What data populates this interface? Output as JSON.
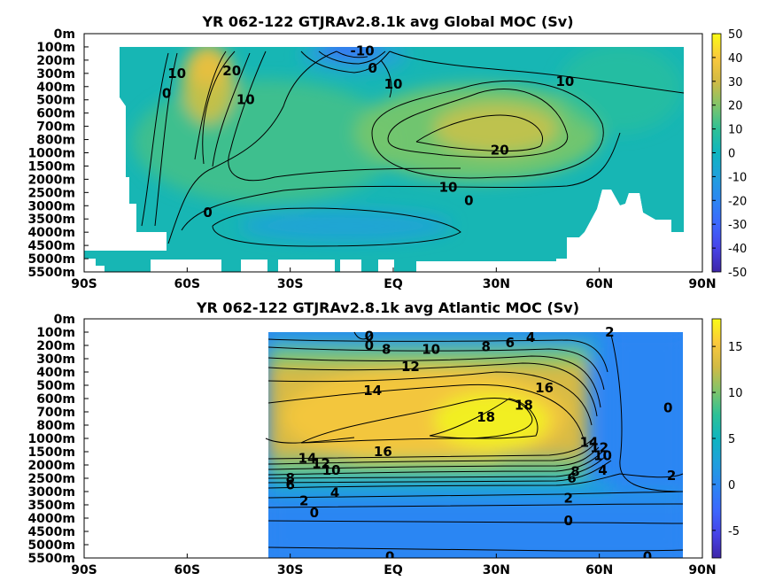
{
  "chart_data": [
    {
      "type": "heatmap",
      "title": "YR 062-122 GTJRAv2.8.1k avg  Global MOC (Sv)",
      "x_ticks": [
        "90S",
        "60S",
        "30S",
        "EQ",
        "30N",
        "60N",
        "90N"
      ],
      "x_range": [
        -90,
        90
      ],
      "y_ticks": [
        "0m",
        "100m",
        "200m",
        "300m",
        "400m",
        "500m",
        "600m",
        "700m",
        "800m",
        "1000m",
        "1500m",
        "2000m",
        "2500m",
        "3000m",
        "3500m",
        "4000m",
        "4500m",
        "5000m",
        "5500m"
      ],
      "colorbar": {
        "min": -50,
        "max": 50,
        "ticks": [
          "50",
          "40",
          "30",
          "20",
          "10",
          "0",
          "-10",
          "-20",
          "-30",
          "-40",
          "-50"
        ]
      },
      "contour_labels": [
        {
          "text": "0",
          "lat": -66,
          "depth_index": 4.5
        },
        {
          "text": "10",
          "lat": -63,
          "depth_index": 3.0
        },
        {
          "text": "20",
          "lat": -47,
          "depth_index": 2.8
        },
        {
          "text": "10",
          "lat": -43,
          "depth_index": 5.0
        },
        {
          "text": "0",
          "lat": -54,
          "depth_index": 13.5
        },
        {
          "text": "-10",
          "lat": -9,
          "depth_index": 1.3
        },
        {
          "text": "0",
          "lat": -6,
          "depth_index": 2.6
        },
        {
          "text": "10",
          "lat": 0,
          "depth_index": 3.8
        },
        {
          "text": "10",
          "lat": 50,
          "depth_index": 3.6
        },
        {
          "text": "20",
          "lat": 31,
          "depth_index": 8.8
        },
        {
          "text": "10",
          "lat": 16,
          "depth_index": 11.6
        },
        {
          "text": "0",
          "lat": 22,
          "depth_index": 12.6
        }
      ]
    },
    {
      "type": "heatmap",
      "title": "YR 062-122 GTJRAv2.8.1k avg  Atlantic MOC (Sv)",
      "x_ticks": [
        "90S",
        "60S",
        "30S",
        "EQ",
        "30N",
        "60N",
        "90N"
      ],
      "x_range": [
        -90,
        90
      ],
      "y_ticks": [
        "0m",
        "100m",
        "200m",
        "300m",
        "400m",
        "500m",
        "600m",
        "700m",
        "800m",
        "1000m",
        "1500m",
        "2000m",
        "2500m",
        "3000m",
        "3500m",
        "4000m",
        "4500m",
        "5000m",
        "5500m"
      ],
      "colorbar": {
        "min": -8,
        "max": 18,
        "ticks": [
          "15",
          "10",
          "5",
          "0",
          "-5"
        ]
      },
      "contour_labels": [
        {
          "text": "0",
          "lat": -7,
          "depth_index": 1.3
        },
        {
          "text": "0",
          "lat": -7,
          "depth_index": 2.0
        },
        {
          "text": "8",
          "lat": -2,
          "depth_index": 2.3
        },
        {
          "text": "10",
          "lat": 11,
          "depth_index": 2.3
        },
        {
          "text": "8",
          "lat": 27,
          "depth_index": 2.1
        },
        {
          "text": "6",
          "lat": 34,
          "depth_index": 1.8
        },
        {
          "text": "4",
          "lat": 40,
          "depth_index": 1.4
        },
        {
          "text": "2",
          "lat": 63,
          "depth_index": 1.0
        },
        {
          "text": "12",
          "lat": 5,
          "depth_index": 3.6
        },
        {
          "text": "14",
          "lat": -6,
          "depth_index": 5.4
        },
        {
          "text": "16",
          "lat": 44,
          "depth_index": 5.2
        },
        {
          "text": "18",
          "lat": 27,
          "depth_index": 7.4
        },
        {
          "text": "18",
          "lat": 38,
          "depth_index": 6.5
        },
        {
          "text": "16",
          "lat": -3,
          "depth_index": 10.0
        },
        {
          "text": "14",
          "lat": -25,
          "depth_index": 10.5
        },
        {
          "text": "12",
          "lat": -21,
          "depth_index": 10.9
        },
        {
          "text": "10",
          "lat": -18,
          "depth_index": 11.4
        },
        {
          "text": "14",
          "lat": 57,
          "depth_index": 9.3
        },
        {
          "text": "12",
          "lat": 60,
          "depth_index": 9.7
        },
        {
          "text": "10",
          "lat": 61,
          "depth_index": 10.3
        },
        {
          "text": "8",
          "lat": 53,
          "depth_index": 11.5
        },
        {
          "text": "6",
          "lat": 52,
          "depth_index": 12.0
        },
        {
          "text": "4",
          "lat": 61,
          "depth_index": 11.4
        },
        {
          "text": "2",
          "lat": 81,
          "depth_index": 11.8
        },
        {
          "text": "0",
          "lat": 80,
          "depth_index": 6.7
        },
        {
          "text": "8",
          "lat": -30,
          "depth_index": 12.0
        },
        {
          "text": "6",
          "lat": -30,
          "depth_index": 12.5
        },
        {
          "text": "4",
          "lat": -17,
          "depth_index": 13.1
        },
        {
          "text": "2",
          "lat": -26,
          "depth_index": 13.7
        },
        {
          "text": "2",
          "lat": 51,
          "depth_index": 13.5
        },
        {
          "text": "0",
          "lat": -23,
          "depth_index": 14.6
        },
        {
          "text": "0",
          "lat": 51,
          "depth_index": 15.2
        },
        {
          "text": "0",
          "lat": -1,
          "depth_index": 17.9
        },
        {
          "text": "0",
          "lat": 74,
          "depth_index": 17.9
        }
      ]
    }
  ]
}
